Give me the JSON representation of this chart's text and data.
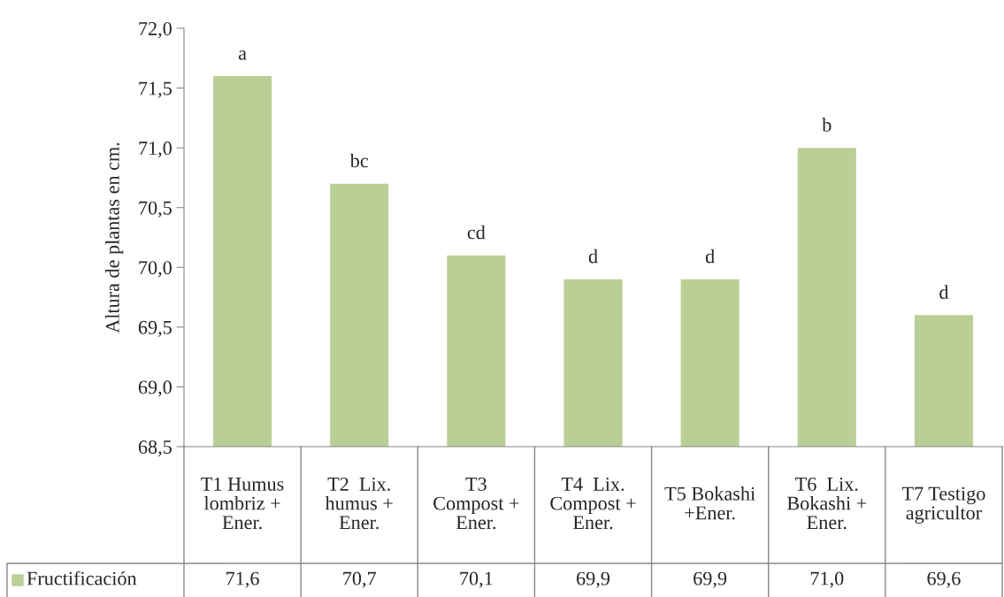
{
  "chart_data": {
    "type": "bar",
    "ylabel": "Altura de plantas en cm.",
    "categories": [
      "T1 Humus lombriz + Ener.",
      "T2  Lix. humus + Ener.",
      "T3 Compost + Ener.",
      "T4  Lix. Compost + Ener.",
      "T5 Bokashi +Ener.",
      "T6  Lix. Bokashi + Ener.",
      "T7 Testigo agricultor"
    ],
    "series": [
      {
        "name": "Fructificación",
        "color": "#b9cf96",
        "values": [
          71.6,
          70.7,
          70.1,
          69.9,
          69.9,
          71.0,
          69.6
        ],
        "value_labels": [
          "71,6",
          "70,7",
          "70,1",
          "69,9",
          "69,9",
          "71,0",
          "69,6"
        ]
      }
    ],
    "ylim": [
      68.5,
      72.0
    ],
    "yticks": [
      {
        "value": 68.5,
        "label": "68,5"
      },
      {
        "value": 69.0,
        "label": "69,0"
      },
      {
        "value": 69.5,
        "label": "69,5"
      },
      {
        "value": 70.0,
        "label": "70,0"
      },
      {
        "value": 70.5,
        "label": "70,5"
      },
      {
        "value": 71.0,
        "label": "71,0"
      },
      {
        "value": 71.5,
        "label": "71,5"
      },
      {
        "value": 72.0,
        "label": "72,0"
      }
    ],
    "legend": "bottom left",
    "annotations": [
      {
        "text": "a",
        "x": "T1 Humus lombriz + Ener.",
        "y": 71.6
      },
      {
        "text": "bc",
        "x": "T2  Lix. humus + Ener.",
        "y": 70.7
      },
      {
        "text": "cd",
        "x": "T3 Compost + Ener.",
        "y": 70.1
      },
      {
        "text": "d",
        "x": "T4  Lix. Compost + Ener.",
        "y": 69.9
      },
      {
        "text": "d",
        "x": "T5 Bokashi +Ener.",
        "y": 69.9
      },
      {
        "text": "b",
        "x": "T6  Lix. Bokashi + Ener.",
        "y": 71.0
      },
      {
        "text": "d",
        "x": "T7 Testigo agricultor",
        "y": 69.6
      }
    ]
  }
}
